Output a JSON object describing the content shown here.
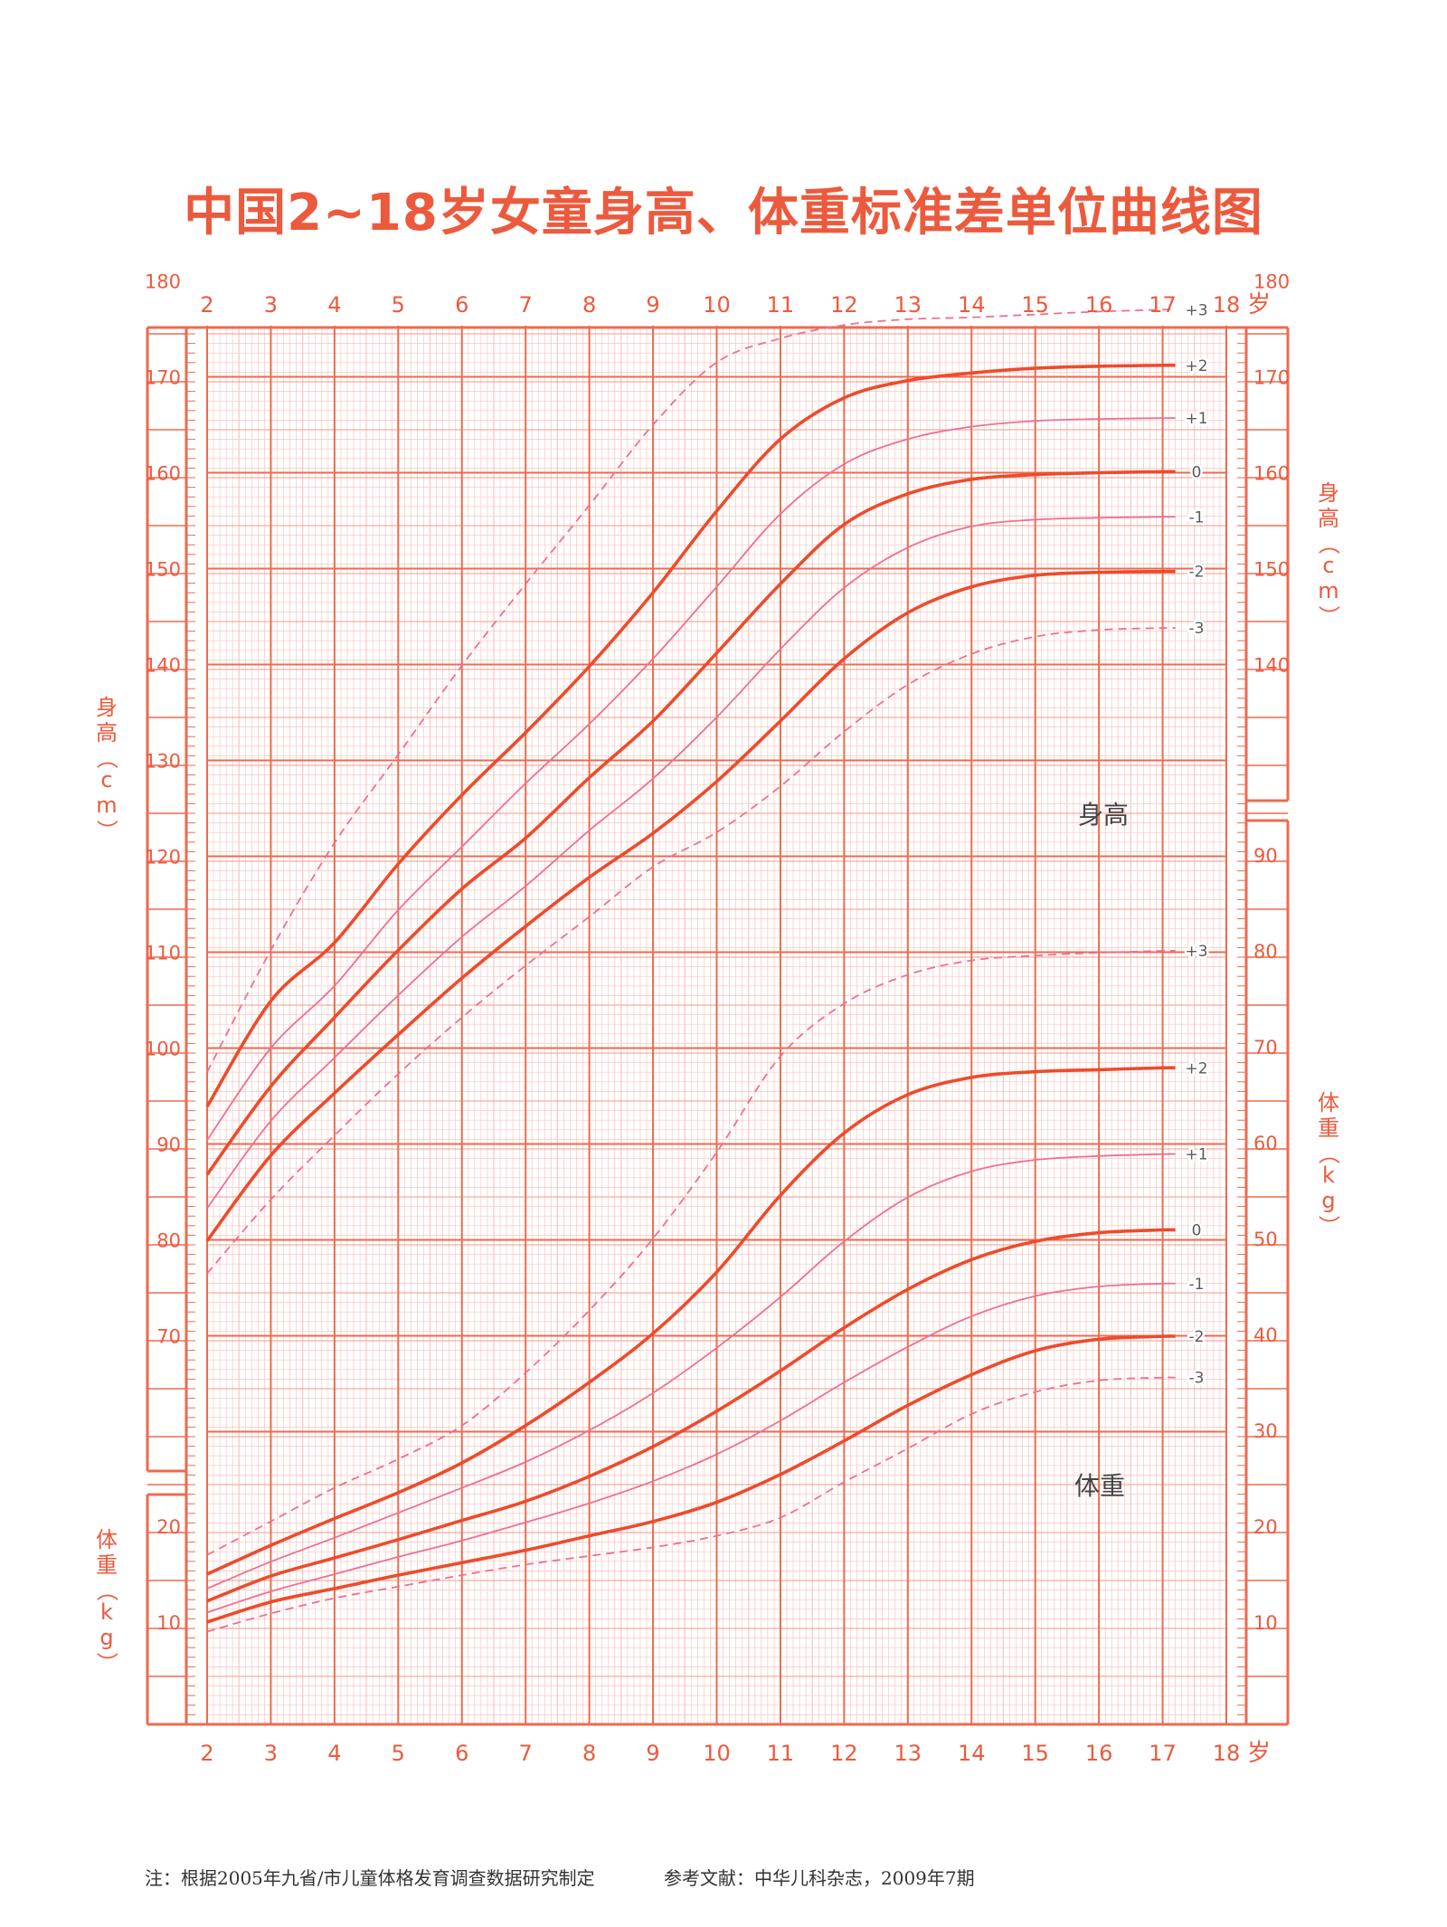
{
  "title": "中国2~18岁女童身高、体重标准差单位曲线图",
  "footnote": {
    "source": "注：根据2005年九省/市儿童体格发育调查数据研究制定",
    "reference": "参考文献：中华儿科杂志，2009年7期"
  },
  "colors": {
    "grid": "#f29a8c",
    "grid_minor": "#f7c6bf",
    "frame": "#ee6a4f",
    "curve_main": "#ee4b2b",
    "curve_thin": "#ef6f93",
    "curve_dashed": "#ef6f93",
    "text": "#ec5a3e"
  },
  "chart_data": {
    "type": "line",
    "x_unit": "岁",
    "x_ticks": [
      "2",
      "3",
      "4",
      "5",
      "6",
      "7",
      "8",
      "9",
      "10",
      "11",
      "12",
      "13",
      "14",
      "15",
      "16",
      "17",
      "18"
    ],
    "x_range": [
      2,
      18
    ],
    "panels": [
      {
        "name": "height",
        "label": "身高",
        "axis_label_left": "身高（cm）",
        "axis_label_right": "身高（cm）",
        "unit": "cm",
        "left_ticks": [
          "70",
          "80",
          "90",
          "100",
          "110",
          "120",
          "130",
          "140",
          "150",
          "160",
          "170",
          "180"
        ],
        "right_ticks": [
          "140",
          "150",
          "160",
          "170",
          "180"
        ],
        "x": [
          2,
          3,
          4,
          5,
          6,
          7,
          8,
          9,
          10,
          11,
          12,
          13,
          14,
          15,
          16,
          17,
          17.2
        ],
        "series": [
          {
            "name": "+3",
            "style": "dashed",
            "values": [
              97.5,
              110.2,
              121.4,
              130.6,
              139.9,
              148.4,
              156.6,
              165.0,
              171.5,
              174.0,
              175.4,
              176.0,
              176.2,
              176.5,
              176.8,
              177.0,
              177.0
            ]
          },
          {
            "name": "+2",
            "style": "thick",
            "values": [
              93.9,
              104.9,
              111.0,
              119.2,
              126.4,
              132.9,
              139.8,
              147.5,
              156.0,
              163.5,
              167.8,
              169.6,
              170.4,
              170.9,
              171.1,
              171.2,
              171.2
            ]
          },
          {
            "name": "+1",
            "style": "thin",
            "values": [
              90.4,
              100.0,
              106.5,
              114.4,
              121.0,
              127.6,
              133.8,
              140.6,
              148.1,
              155.7,
              160.9,
              163.5,
              164.8,
              165.4,
              165.6,
              165.7,
              165.7
            ]
          },
          {
            "name": "0",
            "style": "thick",
            "values": [
              86.8,
              96.0,
              103.2,
              110.2,
              116.6,
              121.9,
              128.2,
              134.1,
              141.2,
              148.4,
              154.6,
              157.8,
              159.3,
              159.8,
              160.0,
              160.1,
              160.1
            ]
          },
          {
            "name": "-1",
            "style": "thin",
            "values": [
              83.3,
              92.4,
              99.0,
              105.5,
              111.6,
              116.9,
              122.7,
              128.1,
              134.5,
              141.6,
              148.0,
              152.2,
              154.4,
              155.1,
              155.3,
              155.4,
              155.4
            ]
          },
          {
            "name": "-2",
            "style": "thick",
            "values": [
              79.9,
              88.8,
              95.3,
              101.4,
              107.3,
              112.7,
              117.8,
              122.4,
              127.8,
              134.1,
              140.6,
              145.4,
              148.1,
              149.3,
              149.6,
              149.7,
              149.7
            ]
          },
          {
            "name": "-3",
            "style": "dashed",
            "values": [
              76.5,
              84.2,
              90.9,
              97.3,
              103.2,
              108.6,
              113.7,
              118.9,
              122.5,
              127.3,
              133.0,
              137.9,
              141.1,
              142.9,
              143.6,
              143.8,
              143.8
            ]
          }
        ]
      },
      {
        "name": "weight",
        "label": "体重",
        "axis_label_left": "体重（kg）",
        "axis_label_right": "体重（kg）",
        "unit": "kg",
        "left_ticks": [
          "10",
          "20"
        ],
        "right_ticks": [
          "10",
          "20",
          "30",
          "40",
          "50",
          "60",
          "70",
          "80",
          "90"
        ],
        "x": [
          2,
          3,
          4,
          5,
          6,
          7,
          8,
          9,
          10,
          11,
          12,
          13,
          14,
          15,
          16,
          17,
          17.2
        ],
        "series": [
          {
            "name": "+3",
            "style": "dashed",
            "values": [
              17.0,
              20.5,
              24.0,
              27.0,
              30.5,
              36.0,
              42.5,
              50.0,
              59.0,
              69.0,
              74.5,
              77.5,
              79.0,
              79.5,
              79.8,
              80.0,
              80.0
            ]
          },
          {
            "name": "+2",
            "style": "thick",
            "values": [
              15.0,
              18.0,
              20.8,
              23.5,
              26.6,
              30.5,
              35.0,
              40.1,
              46.5,
              54.5,
              61.0,
              65.0,
              66.8,
              67.4,
              67.6,
              67.8,
              67.8
            ]
          },
          {
            "name": "+1",
            "style": "thin",
            "values": [
              13.5,
              16.3,
              18.8,
              21.4,
              24.0,
              26.7,
              30.0,
              33.9,
              38.6,
              43.9,
              49.7,
              54.3,
              57.0,
              58.2,
              58.6,
              58.8,
              58.8
            ]
          },
          {
            "name": "0",
            "style": "thick",
            "values": [
              12.2,
              14.8,
              16.7,
              18.6,
              20.6,
              22.6,
              25.2,
              28.3,
              32.0,
              36.2,
              40.7,
              44.7,
              47.8,
              49.7,
              50.6,
              50.9,
              50.9
            ]
          },
          {
            "name": "-1",
            "style": "thin",
            "values": [
              11.0,
              13.2,
              15.0,
              16.8,
              18.5,
              20.4,
              22.4,
              24.7,
              27.5,
              31.0,
              35.0,
              38.7,
              41.9,
              44.0,
              45.0,
              45.3,
              45.3
            ]
          },
          {
            "name": "-2",
            "style": "thick",
            "values": [
              10.0,
              12.1,
              13.5,
              14.9,
              16.2,
              17.5,
              19.0,
              20.5,
              22.5,
              25.4,
              28.9,
              32.6,
              35.8,
              38.3,
              39.5,
              39.8,
              39.8
            ]
          },
          {
            "name": "-3",
            "style": "dashed",
            "values": [
              9.0,
              10.9,
              12.5,
              13.7,
              14.9,
              16.0,
              16.9,
              17.8,
              19.0,
              20.9,
              24.6,
              28.1,
              31.7,
              34.0,
              35.2,
              35.5,
              35.5
            ]
          }
        ]
      }
    ]
  }
}
